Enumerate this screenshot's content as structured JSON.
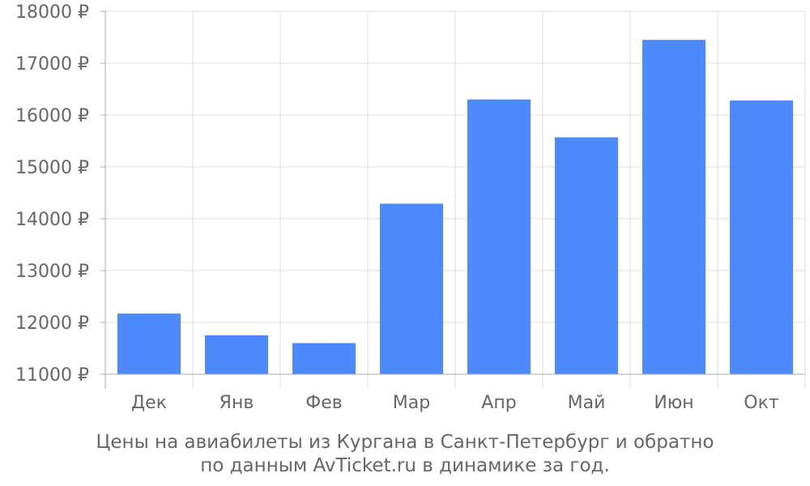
{
  "chart_data": {
    "type": "bar",
    "categories": [
      "Дек",
      "Янв",
      "Фев",
      "Мар",
      "Апр",
      "Май",
      "Июн",
      "Окт"
    ],
    "values": [
      12170,
      11750,
      11600,
      14290,
      16300,
      15570,
      17450,
      16280
    ],
    "ylim": [
      11000,
      18000
    ],
    "yticks": [
      11000,
      12000,
      13000,
      14000,
      15000,
      16000,
      17000,
      18000
    ],
    "ytick_labels": [
      "11000 ₽",
      "12000 ₽",
      "13000 ₽",
      "14000 ₽",
      "15000 ₽",
      "16000 ₽",
      "17000 ₽",
      "18000 ₽"
    ],
    "grid": true,
    "bar_color": "#4c89fb"
  },
  "caption": {
    "line1": "Цены на авиабилеты из Кургана в Санкт-Петербург и обратно",
    "line2": "по данным AvTicket.ru в динамике за год."
  },
  "colors": {
    "grid": "#dddddd",
    "axis": "#aaaaaa",
    "text": "#666666"
  }
}
